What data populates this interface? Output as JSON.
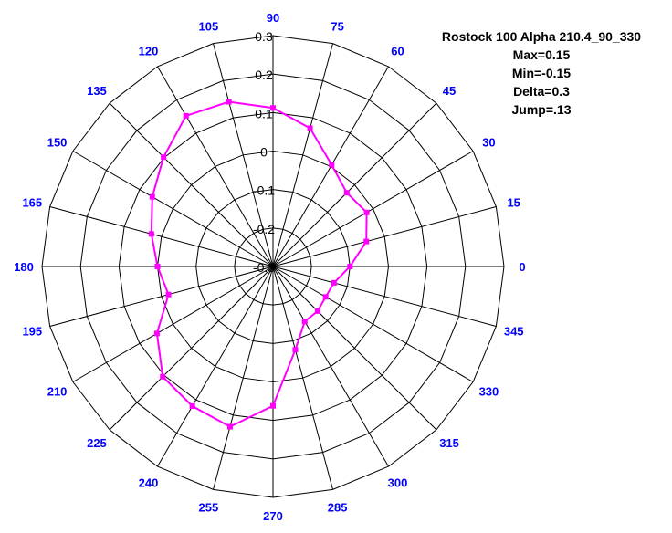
{
  "chart_data": {
    "type": "radar",
    "title": "Rostock 100 Alpha 210.4_90_330",
    "stats": [
      "Max=0.15",
      "Min=-0.15",
      "Delta=0.3",
      "Jump=.13"
    ],
    "angle_labels": [
      "0",
      "15",
      "30",
      "45",
      "60",
      "75",
      "90",
      "105",
      "120",
      "135",
      "150",
      "165",
      "180",
      "195",
      "210",
      "225",
      "240",
      "255",
      "270",
      "285",
      "300",
      "315",
      "330",
      "345"
    ],
    "radial_range": [
      -0.3,
      0.3
    ],
    "radial_ticks": [
      "-0.3",
      "-0.2",
      "-0.1",
      "0",
      "0.1",
      "0.2",
      "0.3"
    ],
    "radial_tick_values": [
      -0.3,
      -0.2,
      -0.1,
      0,
      0.1,
      0.2,
      0.3
    ],
    "grid": true,
    "series": [
      {
        "angles": [
          0,
          15,
          30,
          45,
          60,
          75,
          90,
          105,
          120,
          135,
          150,
          165,
          180,
          195,
          210,
          225,
          240,
          255,
          270,
          285,
          300,
          315,
          330,
          345
        ],
        "values": [
          -0.1,
          -0.049,
          -0.019,
          -0.029,
          0.005,
          0.072,
          0.112,
          0.143,
          0.152,
          0.102,
          0.062,
          0.027,
          0.0,
          -0.019,
          0.048,
          0.105,
          0.119,
          0.131,
          0.062,
          -0.076,
          -0.135,
          -0.136,
          -0.142,
          -0.136
        ],
        "color": "#ff00ff"
      }
    ],
    "colors": {
      "angle_labels": "#0000ff",
      "grid": "#000000"
    }
  }
}
